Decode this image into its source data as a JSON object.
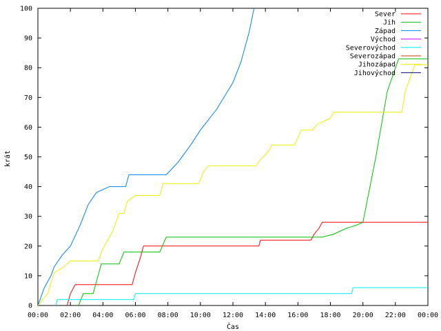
{
  "chart_data": {
    "type": "line",
    "xlabel": "Čas",
    "ylabel": "krát",
    "xlim": [
      0,
      24
    ],
    "ylim": [
      0,
      100
    ],
    "x_ticks": [
      0,
      2,
      4,
      6,
      8,
      10,
      12,
      14,
      16,
      18,
      20,
      22,
      24
    ],
    "x_tick_labels": [
      "00:00",
      "02:00",
      "04:00",
      "06:00",
      "08:00",
      "10:00",
      "12:00",
      "14:00",
      "16:00",
      "18:00",
      "20:00",
      "22:00",
      "00:00"
    ],
    "y_ticks": [
      0,
      10,
      20,
      30,
      40,
      50,
      60,
      70,
      80,
      90,
      100
    ],
    "grid": false,
    "legend_position": "top-right",
    "series": [
      {
        "name": "Sever",
        "color": "#ff0000",
        "points": [
          [
            1.8,
            0
          ],
          [
            2.0,
            4
          ],
          [
            2.3,
            7
          ],
          [
            5.8,
            7
          ],
          [
            6.0,
            11
          ],
          [
            6.3,
            16
          ],
          [
            6.5,
            20
          ],
          [
            13.6,
            20
          ],
          [
            13.7,
            22
          ],
          [
            16.8,
            22
          ],
          [
            17.0,
            24
          ],
          [
            17.3,
            26
          ],
          [
            17.5,
            28
          ],
          [
            24,
            28
          ]
        ]
      },
      {
        "name": "Jih",
        "color": "#00c000",
        "points": [
          [
            2.5,
            0
          ],
          [
            2.8,
            4
          ],
          [
            3.4,
            4
          ],
          [
            3.6,
            8
          ],
          [
            3.9,
            14
          ],
          [
            5.0,
            14
          ],
          [
            5.3,
            18
          ],
          [
            7.5,
            18
          ],
          [
            7.9,
            23
          ],
          [
            17.5,
            23
          ],
          [
            18.2,
            24
          ],
          [
            19.0,
            26
          ],
          [
            19.6,
            27
          ],
          [
            20.0,
            28
          ],
          [
            20.8,
            50
          ],
          [
            21.5,
            72
          ],
          [
            22.2,
            83
          ],
          [
            24,
            83
          ]
        ]
      },
      {
        "name": "Západ",
        "color": "#0080ff",
        "points": [
          [
            0,
            0
          ],
          [
            0.4,
            6
          ],
          [
            0.8,
            10
          ],
          [
            1.0,
            13
          ],
          [
            1.5,
            17
          ],
          [
            2.0,
            20
          ],
          [
            2.6,
            27
          ],
          [
            3.1,
            34
          ],
          [
            3.6,
            38
          ],
          [
            4.4,
            40
          ],
          [
            5.4,
            40
          ],
          [
            5.6,
            44
          ],
          [
            7.9,
            44
          ],
          [
            8.6,
            48
          ],
          [
            9.4,
            54
          ],
          [
            10.0,
            59
          ],
          [
            11.0,
            66
          ],
          [
            12.0,
            75
          ],
          [
            12.5,
            82
          ],
          [
            13.0,
            92
          ],
          [
            13.3,
            100
          ]
        ]
      },
      {
        "name": "Východ",
        "color": "#c000ff",
        "points": []
      },
      {
        "name": "Severovýchod",
        "color": "#00eeee",
        "points": [
          [
            1.1,
            0
          ],
          [
            1.2,
            2
          ],
          [
            5.9,
            2
          ],
          [
            6.0,
            4
          ],
          [
            19.3,
            4
          ],
          [
            19.4,
            6
          ],
          [
            24,
            6
          ]
        ]
      },
      {
        "name": "Severozápad",
        "color": "#c04000",
        "points": []
      },
      {
        "name": "Jihozápad",
        "color": "#eeee00",
        "points": [
          [
            0,
            0
          ],
          [
            0.6,
            4
          ],
          [
            1.0,
            11
          ],
          [
            1.6,
            13
          ],
          [
            2.0,
            15
          ],
          [
            3.7,
            15
          ],
          [
            4.0,
            19
          ],
          [
            4.6,
            25
          ],
          [
            5.0,
            31
          ],
          [
            5.3,
            31
          ],
          [
            5.5,
            35
          ],
          [
            6.0,
            37
          ],
          [
            7.5,
            37
          ],
          [
            7.7,
            41
          ],
          [
            9.9,
            41
          ],
          [
            10.2,
            45
          ],
          [
            10.5,
            47
          ],
          [
            13.4,
            47
          ],
          [
            13.7,
            49
          ],
          [
            14.2,
            52
          ],
          [
            14.4,
            54
          ],
          [
            15.8,
            54
          ],
          [
            16.2,
            59
          ],
          [
            16.9,
            59
          ],
          [
            17.2,
            61
          ],
          [
            18.0,
            63
          ],
          [
            18.2,
            65
          ],
          [
            22.4,
            65
          ],
          [
            22.6,
            72
          ],
          [
            23.0,
            78
          ],
          [
            23.2,
            81
          ],
          [
            24,
            81
          ]
        ]
      },
      {
        "name": "Jihovýchod",
        "color": "#000080",
        "points": []
      }
    ]
  }
}
